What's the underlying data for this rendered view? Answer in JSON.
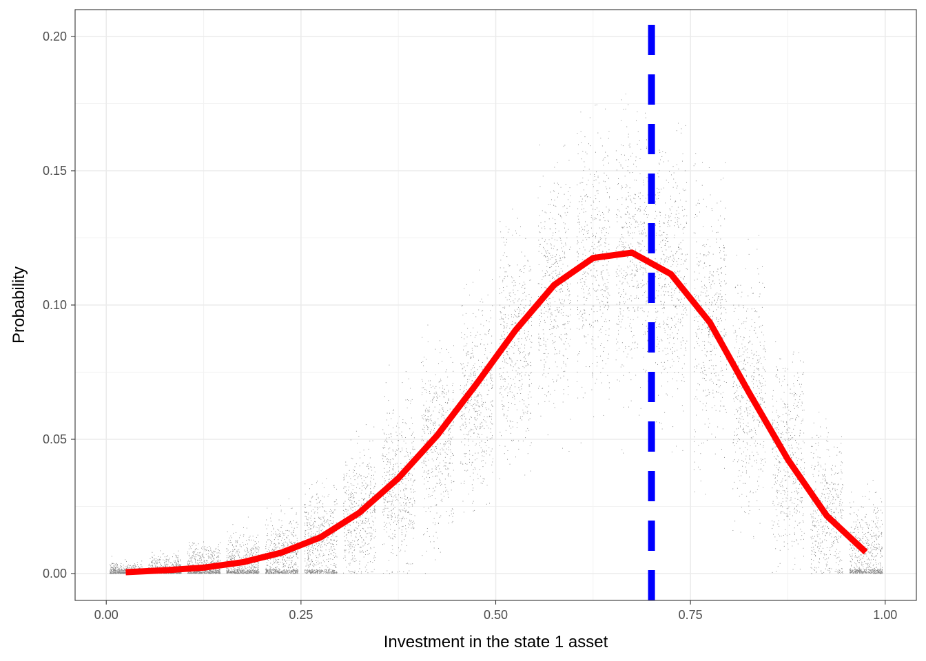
{
  "chart_data": {
    "type": "scatter",
    "xlabel": "Investment in the state 1 asset",
    "ylabel": "Probability",
    "xlim": [
      -0.04,
      1.04
    ],
    "ylim": [
      -0.01,
      0.21
    ],
    "x_ticks": [
      0.0,
      0.25,
      0.5,
      0.75,
      1.0
    ],
    "x_tick_labels": [
      "0.00",
      "0.25",
      "0.50",
      "0.75",
      "1.00"
    ],
    "y_ticks": [
      0.0,
      0.05,
      0.1,
      0.15,
      0.2
    ],
    "y_tick_labels": [
      "0.00",
      "0.05",
      "0.10",
      "0.15",
      "0.20"
    ],
    "grid": true,
    "theme": "bw",
    "scatter_groups": [
      {
        "x": 0.025,
        "center": 0.0007,
        "spread": 0.0015,
        "max": 0.02
      },
      {
        "x": 0.075,
        "center": 0.0015,
        "spread": 0.0025,
        "max": 0.03
      },
      {
        "x": 0.125,
        "center": 0.0025,
        "spread": 0.004,
        "max": 0.04
      },
      {
        "x": 0.175,
        "center": 0.004,
        "spread": 0.005,
        "max": 0.045
      },
      {
        "x": 0.225,
        "center": 0.007,
        "spread": 0.007,
        "max": 0.055
      },
      {
        "x": 0.275,
        "center": 0.013,
        "spread": 0.009,
        "max": 0.07
      },
      {
        "x": 0.325,
        "center": 0.022,
        "spread": 0.012,
        "max": 0.08
      },
      {
        "x": 0.375,
        "center": 0.033,
        "spread": 0.014,
        "max": 0.09
      },
      {
        "x": 0.425,
        "center": 0.048,
        "spread": 0.016,
        "max": 0.1
      },
      {
        "x": 0.475,
        "center": 0.065,
        "spread": 0.018,
        "max": 0.12
      },
      {
        "x": 0.525,
        "center": 0.085,
        "spread": 0.02,
        "max": 0.14
      },
      {
        "x": 0.575,
        "center": 0.105,
        "spread": 0.022,
        "max": 0.16
      },
      {
        "x": 0.625,
        "center": 0.117,
        "spread": 0.023,
        "max": 0.175
      },
      {
        "x": 0.675,
        "center": 0.119,
        "spread": 0.024,
        "max": 0.185
      },
      {
        "x": 0.725,
        "center": 0.111,
        "spread": 0.024,
        "max": 0.17
      },
      {
        "x": 0.775,
        "center": 0.093,
        "spread": 0.023,
        "max": 0.16
      },
      {
        "x": 0.825,
        "center": 0.067,
        "spread": 0.021,
        "max": 0.14
      },
      {
        "x": 0.875,
        "center": 0.042,
        "spread": 0.018,
        "max": 0.12
      },
      {
        "x": 0.925,
        "center": 0.021,
        "spread": 0.014,
        "max": 0.1
      },
      {
        "x": 0.975,
        "center": 0.008,
        "spread": 0.009,
        "max": 0.06
      }
    ],
    "series": [
      {
        "type": "line",
        "color": "#ff0000",
        "x": [
          0.025,
          0.075,
          0.125,
          0.175,
          0.225,
          0.275,
          0.325,
          0.375,
          0.425,
          0.475,
          0.525,
          0.575,
          0.625,
          0.675,
          0.725,
          0.775,
          0.825,
          0.875,
          0.925,
          0.975
        ],
        "y": [
          0.0005,
          0.0012,
          0.0022,
          0.0042,
          0.0078,
          0.0135,
          0.0227,
          0.0355,
          0.0515,
          0.0705,
          0.0905,
          0.1075,
          0.1175,
          0.1195,
          0.1115,
          0.0935,
          0.0675,
          0.0425,
          0.0215,
          0.008
        ]
      }
    ],
    "vline": {
      "x": 0.7,
      "color": "#0000ff",
      "style": "dashed"
    }
  }
}
